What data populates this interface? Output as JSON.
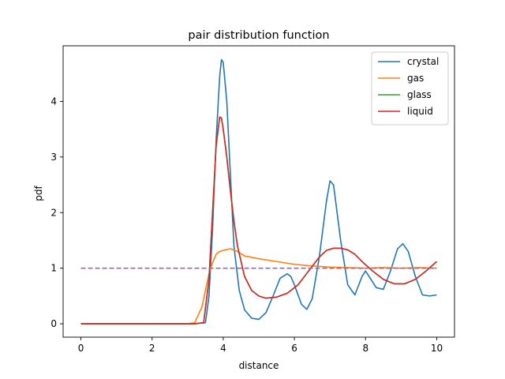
{
  "chart_data": {
    "type": "line",
    "title": "pair distribution function",
    "xlabel": "distance",
    "ylabel": "pdf",
    "xlim": [
      -0.5,
      10.5
    ],
    "ylim": [
      -0.24,
      5.0
    ],
    "xticks": [
      0,
      2,
      4,
      6,
      8,
      10
    ],
    "yticks": [
      0,
      1,
      2,
      3,
      4
    ],
    "grid": false,
    "legend_position": "top-right",
    "series": [
      {
        "name": "crystal",
        "color": "#1f77b4",
        "style": "solid",
        "x": [
          0,
          3.2,
          3.5,
          3.6,
          3.7,
          3.8,
          3.9,
          3.95,
          4.0,
          4.1,
          4.2,
          4.3,
          4.45,
          4.6,
          4.8,
          5.0,
          5.2,
          5.4,
          5.6,
          5.8,
          5.9,
          6.0,
          6.2,
          6.35,
          6.5,
          6.7,
          6.9,
          7.0,
          7.1,
          7.3,
          7.5,
          7.7,
          7.9,
          8.0,
          8.1,
          8.3,
          8.5,
          8.7,
          8.9,
          9.05,
          9.2,
          9.4,
          9.6,
          9.8,
          10.0
        ],
        "y": [
          0,
          0,
          0.02,
          0.5,
          1.7,
          3.3,
          4.45,
          4.75,
          4.7,
          4.0,
          2.7,
          1.4,
          0.6,
          0.25,
          0.1,
          0.08,
          0.2,
          0.5,
          0.82,
          0.9,
          0.85,
          0.7,
          0.35,
          0.26,
          0.45,
          1.2,
          2.2,
          2.57,
          2.5,
          1.5,
          0.7,
          0.52,
          0.85,
          0.95,
          0.85,
          0.65,
          0.62,
          0.95,
          1.35,
          1.44,
          1.3,
          0.85,
          0.52,
          0.5,
          0.52
        ]
      },
      {
        "name": "gas",
        "color": "#ff7f0e",
        "style": "solid",
        "x": [
          0,
          3.0,
          3.2,
          3.4,
          3.5,
          3.6,
          3.7,
          3.8,
          3.9,
          4.0,
          4.2,
          4.4,
          4.6,
          5.0,
          5.5,
          6.0,
          6.5,
          7.0,
          7.5,
          8.0,
          8.5,
          9.0,
          9.5,
          10.0
        ],
        "y": [
          0,
          0,
          0.02,
          0.3,
          0.6,
          0.9,
          1.1,
          1.25,
          1.3,
          1.32,
          1.35,
          1.3,
          1.22,
          1.17,
          1.12,
          1.07,
          1.04,
          1.02,
          1.01,
          1.0,
          1.01,
          1.0,
          1.01,
          1.0
        ]
      },
      {
        "name": "glass",
        "color": "#2ca02c",
        "style": "solid",
        "x": [
          0,
          3.2,
          3.45,
          3.6,
          3.7,
          3.8,
          3.9,
          3.95,
          4.0,
          4.1,
          4.2,
          4.3,
          4.4,
          4.6,
          4.8,
          5.0,
          5.2,
          5.5,
          5.8,
          6.1,
          6.4,
          6.7,
          6.9,
          7.1,
          7.3,
          7.5,
          7.7,
          7.9,
          8.2,
          8.5,
          8.8,
          9.1,
          9.4,
          9.7,
          10.0
        ],
        "y": [
          0,
          0,
          0.02,
          0.8,
          2.0,
          3.2,
          3.72,
          3.7,
          3.5,
          3.0,
          2.4,
          1.85,
          1.4,
          0.85,
          0.6,
          0.5,
          0.46,
          0.48,
          0.55,
          0.7,
          0.95,
          1.2,
          1.32,
          1.36,
          1.36,
          1.33,
          1.25,
          1.12,
          0.95,
          0.8,
          0.72,
          0.72,
          0.8,
          0.95,
          1.12
        ]
      },
      {
        "name": "liquid",
        "color": "#d62728",
        "style": "solid",
        "x": [
          0,
          3.2,
          3.45,
          3.6,
          3.7,
          3.8,
          3.9,
          3.95,
          4.0,
          4.1,
          4.2,
          4.3,
          4.4,
          4.6,
          4.8,
          5.0,
          5.2,
          5.5,
          5.8,
          6.1,
          6.4,
          6.7,
          6.9,
          7.1,
          7.3,
          7.5,
          7.7,
          7.9,
          8.2,
          8.5,
          8.8,
          9.1,
          9.4,
          9.7,
          10.0
        ],
        "y": [
          0,
          0,
          0.02,
          0.8,
          2.0,
          3.2,
          3.72,
          3.7,
          3.5,
          3.0,
          2.4,
          1.85,
          1.4,
          0.85,
          0.6,
          0.5,
          0.46,
          0.48,
          0.55,
          0.7,
          0.95,
          1.2,
          1.32,
          1.36,
          1.36,
          1.33,
          1.25,
          1.12,
          0.95,
          0.8,
          0.72,
          0.72,
          0.8,
          0.95,
          1.12
        ]
      },
      {
        "name": "",
        "color": "#9467bd",
        "style": "dashed",
        "x": [
          0,
          10
        ],
        "y": [
          1,
          1
        ]
      }
    ]
  }
}
